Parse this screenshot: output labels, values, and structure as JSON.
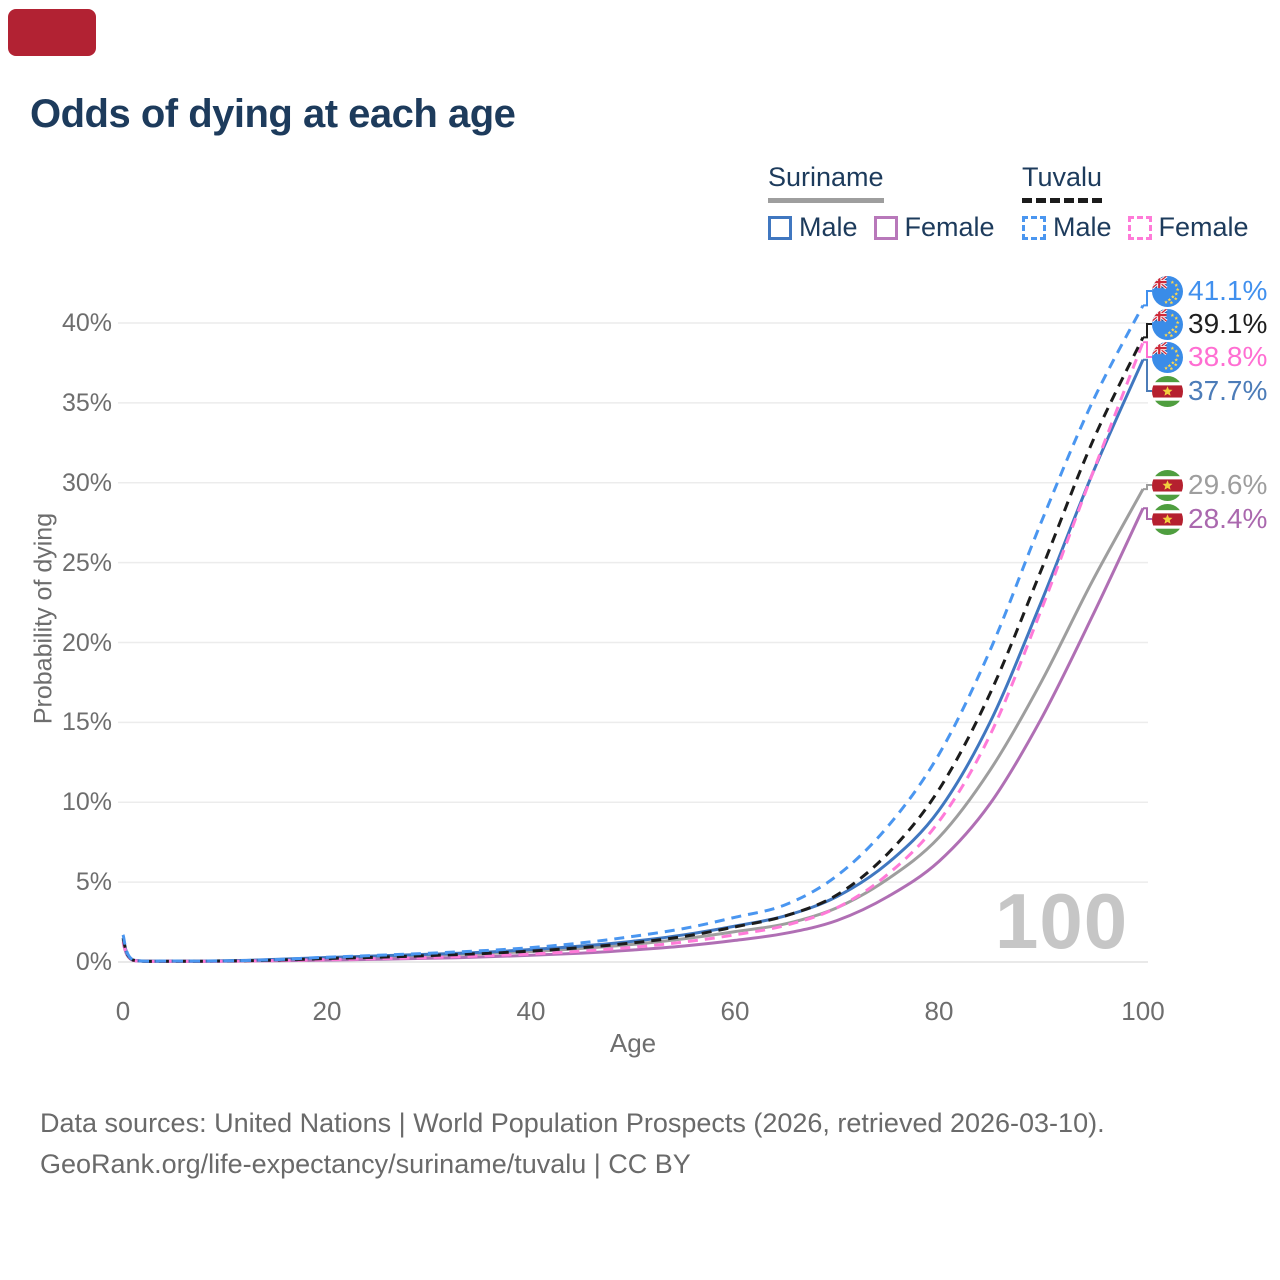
{
  "page": {
    "marker_color": "#b22233"
  },
  "title": "Odds of dying at each age",
  "legend": {
    "groups": [
      {
        "name": "Suriname",
        "line_style": "solid",
        "line_color": "#9e9e9e",
        "items": [
          {
            "label": "Male",
            "color": "#4077c0",
            "dash": false
          },
          {
            "label": "Female",
            "color": "#b878ba",
            "dash": false
          }
        ]
      },
      {
        "name": "Tuvalu",
        "line_style": "dashed",
        "line_color": "#1c1c1c",
        "items": [
          {
            "label": "Male",
            "color": "#4a96f0",
            "dash": true
          },
          {
            "label": "Female",
            "color": "#ff7ad8",
            "dash": true
          }
        ]
      }
    ]
  },
  "chart_data": {
    "type": "line",
    "title": "Odds of dying at each age",
    "xlabel": "Age",
    "ylabel": "Probability of dying",
    "xlim": [
      0,
      100
    ],
    "ylim": [
      0,
      43
    ],
    "grid": "horizontal",
    "watermark": "100",
    "xticks": [
      0,
      20,
      40,
      60,
      80,
      100
    ],
    "yticks": [
      {
        "value": 0,
        "label": "0%"
      },
      {
        "value": 5,
        "label": "5%"
      },
      {
        "value": 10,
        "label": "10%"
      },
      {
        "value": 15,
        "label": "15%"
      },
      {
        "value": 20,
        "label": "20%"
      },
      {
        "value": 25,
        "label": "25%"
      },
      {
        "value": 30,
        "label": "30%"
      },
      {
        "value": 35,
        "label": "35%"
      },
      {
        "value": 40,
        "label": "40%"
      }
    ],
    "ages": [
      0,
      1,
      5,
      10,
      15,
      20,
      25,
      30,
      35,
      40,
      45,
      50,
      55,
      60,
      65,
      70,
      75,
      80,
      85,
      90,
      95,
      100
    ],
    "series": [
      {
        "name": "Tuvalu Male",
        "country": "Tuvalu",
        "sex": "male",
        "style": "dashed",
        "color": "#4a96f0",
        "label_color": "#4190ee",
        "flag": "tuvalu",
        "end_label": "41.1%",
        "values": [
          1.7,
          0.12,
          0.06,
          0.07,
          0.15,
          0.3,
          0.42,
          0.55,
          0.7,
          0.9,
          1.2,
          1.6,
          2.1,
          2.8,
          3.6,
          5.4,
          8.5,
          13.0,
          19.5,
          27.5,
          35.0,
          41.1
        ]
      },
      {
        "name": "Tuvalu",
        "country": "Tuvalu",
        "sex": "both",
        "style": "dashed",
        "color": "#1c1c1c",
        "label_color": "#1f1f1f",
        "flag": "tuvalu",
        "end_label": "39.1%",
        "values": [
          1.5,
          0.11,
          0.05,
          0.06,
          0.12,
          0.22,
          0.3,
          0.4,
          0.52,
          0.68,
          0.9,
          1.2,
          1.6,
          2.2,
          2.9,
          4.2,
          6.8,
          10.8,
          16.8,
          24.5,
          32.5,
          39.1
        ]
      },
      {
        "name": "Tuvalu Female",
        "country": "Tuvalu",
        "sex": "female",
        "style": "dashed",
        "color": "#ff7ad8",
        "label_color": "#ff6ed2",
        "flag": "tuvalu",
        "end_label": "38.8%",
        "values": [
          1.3,
          0.1,
          0.05,
          0.05,
          0.09,
          0.15,
          0.21,
          0.28,
          0.38,
          0.5,
          0.68,
          0.92,
          1.25,
          1.7,
          2.3,
          3.4,
          5.5,
          8.8,
          14.2,
          22.0,
          30.5,
          38.8
        ]
      },
      {
        "name": "Suriname Male",
        "country": "Suriname",
        "sex": "male",
        "style": "solid",
        "color": "#4077c0",
        "label_color": "#4c7cb8",
        "flag": "suriname",
        "end_label": "37.7%",
        "values": [
          1.5,
          0.12,
          0.06,
          0.08,
          0.16,
          0.28,
          0.38,
          0.48,
          0.6,
          0.78,
          1.0,
          1.3,
          1.7,
          2.25,
          2.9,
          4.1,
          6.2,
          9.5,
          15.0,
          22.5,
          30.5,
          37.7
        ]
      },
      {
        "name": "Suriname",
        "country": "Suriname",
        "sex": "both",
        "style": "solid",
        "color": "#9e9e9e",
        "label_color": "#9e9e9e",
        "flag": "suriname",
        "end_label": "29.6%",
        "values": [
          1.4,
          0.11,
          0.05,
          0.07,
          0.13,
          0.24,
          0.33,
          0.42,
          0.52,
          0.66,
          0.85,
          1.1,
          1.45,
          1.9,
          2.4,
          3.4,
          5.2,
          7.8,
          12.0,
          17.5,
          23.8,
          29.6
        ]
      },
      {
        "name": "Suriname Female",
        "country": "Suriname",
        "sex": "female",
        "style": "solid",
        "color": "#b06fb4",
        "label_color": "#aa68ae",
        "flag": "suriname",
        "end_label": "28.4%",
        "values": [
          1.2,
          0.1,
          0.04,
          0.05,
          0.08,
          0.12,
          0.17,
          0.23,
          0.31,
          0.42,
          0.56,
          0.75,
          1.0,
          1.35,
          1.8,
          2.6,
          4.1,
          6.3,
          9.9,
          15.2,
          21.6,
          28.4
        ]
      }
    ]
  },
  "footer": {
    "line1": "Data sources: United Nations | World Population Prospects (2026, retrieved 2026-03-10).",
    "line2": "GeoRank.org/life-expectancy/suriname/tuvalu | CC BY"
  }
}
